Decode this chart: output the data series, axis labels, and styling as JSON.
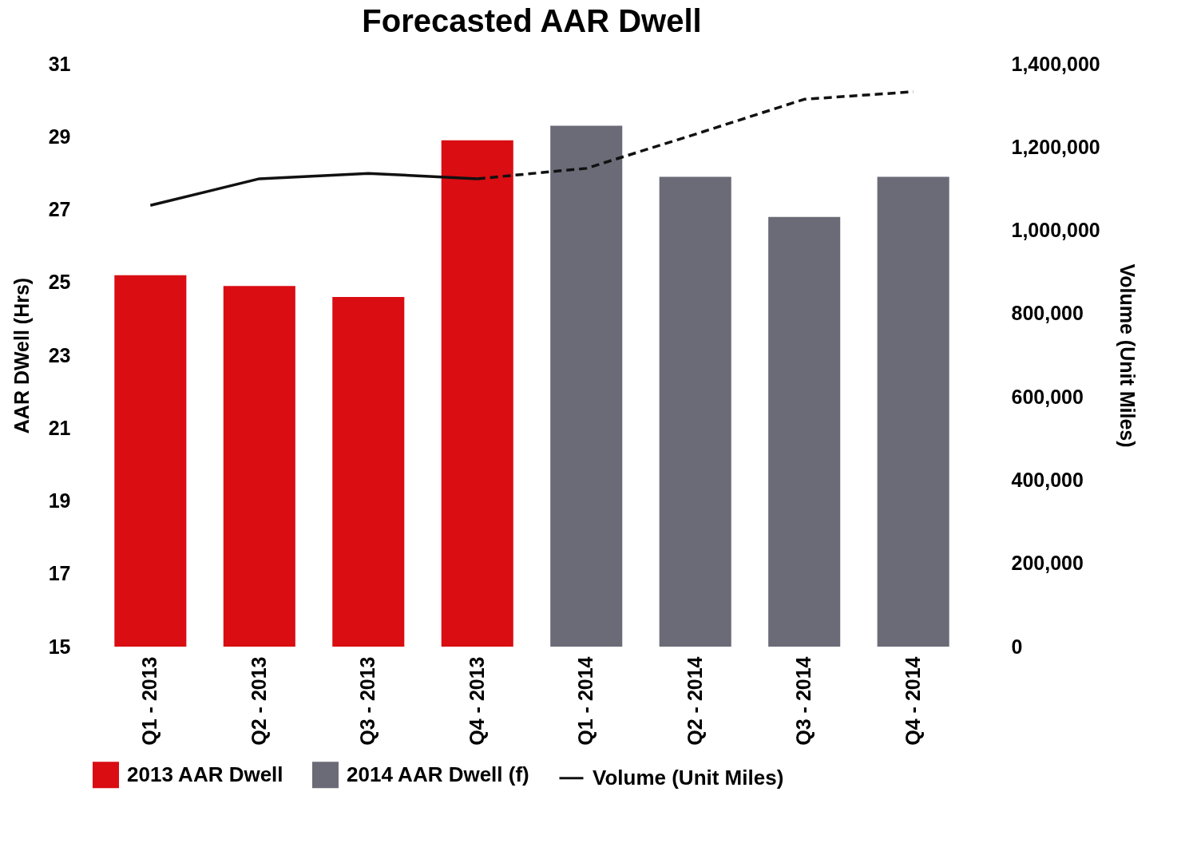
{
  "chart_data": {
    "type": "bar",
    "title": "Forecasted AAR Dwell",
    "ylabel": "AAR DWell (Hrs)",
    "y2label": "Volume (Unit Miles)",
    "categories": [
      "Q1 - 2013",
      "Q2 - 2013",
      "Q3 - 2013",
      "Q4 - 2013",
      "Q1 - 2014",
      "Q2 - 2014",
      "Q3 - 2014",
      "Q4 - 2014"
    ],
    "series": [
      {
        "name": "2013 AAR Dwell",
        "color": "#d90d12",
        "values": [
          25.2,
          24.9,
          24.6,
          28.9,
          null,
          null,
          null,
          null
        ]
      },
      {
        "name": "2014 AAR Dwell (f)",
        "color": "#6b6b78",
        "values": [
          null,
          null,
          null,
          null,
          29.3,
          27.9,
          26.8,
          27.9
        ]
      },
      {
        "name": "Volume (Unit Miles)",
        "type": "line",
        "axis": "y2",
        "color": "#111111",
        "line_style": "solid",
        "values": [
          1060000,
          1124000,
          1137000,
          1124000,
          null,
          null,
          null,
          null
        ]
      },
      {
        "type": "line",
        "axis": "y2",
        "color": "#111111",
        "line_style": "dashed",
        "values": [
          null,
          null,
          null,
          1124000,
          1149000,
          1231000,
          1315000,
          1333000
        ]
      }
    ],
    "ylim": [
      15,
      31
    ],
    "yticks": [
      15,
      17,
      19,
      21,
      23,
      25,
      27,
      29,
      31
    ],
    "y2lim": [
      0,
      1400000
    ],
    "y2ticks": [
      0,
      {
        "value": 200000,
        "label": "200,000"
      },
      {
        "value": 400000,
        "label": "400,000"
      },
      {
        "value": 600000,
        "label": "600,000"
      },
      {
        "value": 800000,
        "label": "800,000"
      },
      {
        "value": 1000000,
        "label": "1,000,000"
      },
      {
        "value": 1200000,
        "label": "1,200,000"
      },
      {
        "value": 1400000,
        "label": "1,400,000"
      }
    ],
    "grid": false,
    "legend": "bottom",
    "marker": "none"
  }
}
